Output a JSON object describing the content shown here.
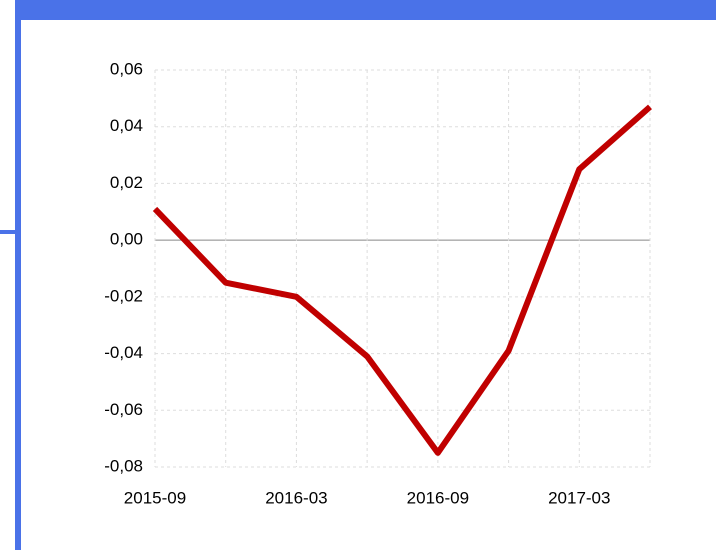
{
  "chart_data": {
    "type": "line",
    "categories": [
      "2015-09",
      null,
      "2016-03",
      null,
      "2016-09",
      null,
      "2017-03",
      null
    ],
    "series": [
      {
        "color": "#c00000",
        "values": [
          0.011,
          -0.015,
          -0.02,
          -0.041,
          -0.075,
          -0.039,
          0.025,
          0.047
        ]
      }
    ],
    "ylim": [
      -0.08,
      0.06
    ],
    "yticks": [
      {
        "value": -0.08,
        "label": "-0,08"
      },
      {
        "value": -0.06,
        "label": "-0,06"
      },
      {
        "value": -0.04,
        "label": "-0,04"
      },
      {
        "value": -0.02,
        "label": "-0,02"
      },
      {
        "value": 0,
        "label": "0,00"
      },
      {
        "value": 0.02,
        "label": "0,02"
      },
      {
        "value": 0.04,
        "label": "0,04"
      },
      {
        "value": 0.06,
        "label": "0,06"
      }
    ],
    "grid": true
  }
}
